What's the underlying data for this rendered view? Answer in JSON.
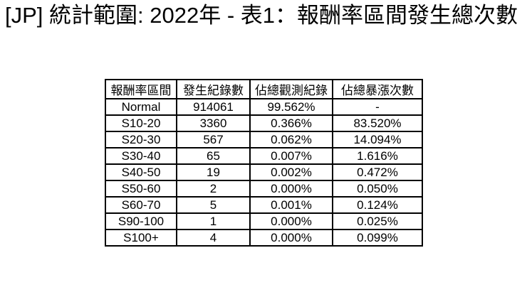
{
  "page": {
    "background_color": "#ffffff",
    "text_color": "#000000",
    "border_color": "#000000"
  },
  "chart_data": {
    "type": "table",
    "title": "[JP] 統計範圍: 2022年 - 表1：報酬率區間發生總次數",
    "columns": [
      "報酬率區間",
      "發生紀錄數",
      "佔總觀測紀錄",
      "佔總暴漲次數"
    ],
    "rows": [
      [
        "Normal",
        "914061",
        "99.562%",
        "-"
      ],
      [
        "S10-20",
        "3360",
        "0.366%",
        "83.520%"
      ],
      [
        "S20-30",
        "567",
        "0.062%",
        "14.094%"
      ],
      [
        "S30-40",
        "65",
        "0.007%",
        "1.616%"
      ],
      [
        "S40-50",
        "19",
        "0.002%",
        "0.472%"
      ],
      [
        "S50-60",
        "2",
        "0.000%",
        "0.050%"
      ],
      [
        "S60-70",
        "5",
        "0.001%",
        "0.124%"
      ],
      [
        "S90-100",
        "1",
        "0.000%",
        "0.025%"
      ],
      [
        "S100+",
        "4",
        "0.000%",
        "0.099%"
      ]
    ],
    "legend": null,
    "grid": "full-borders"
  }
}
